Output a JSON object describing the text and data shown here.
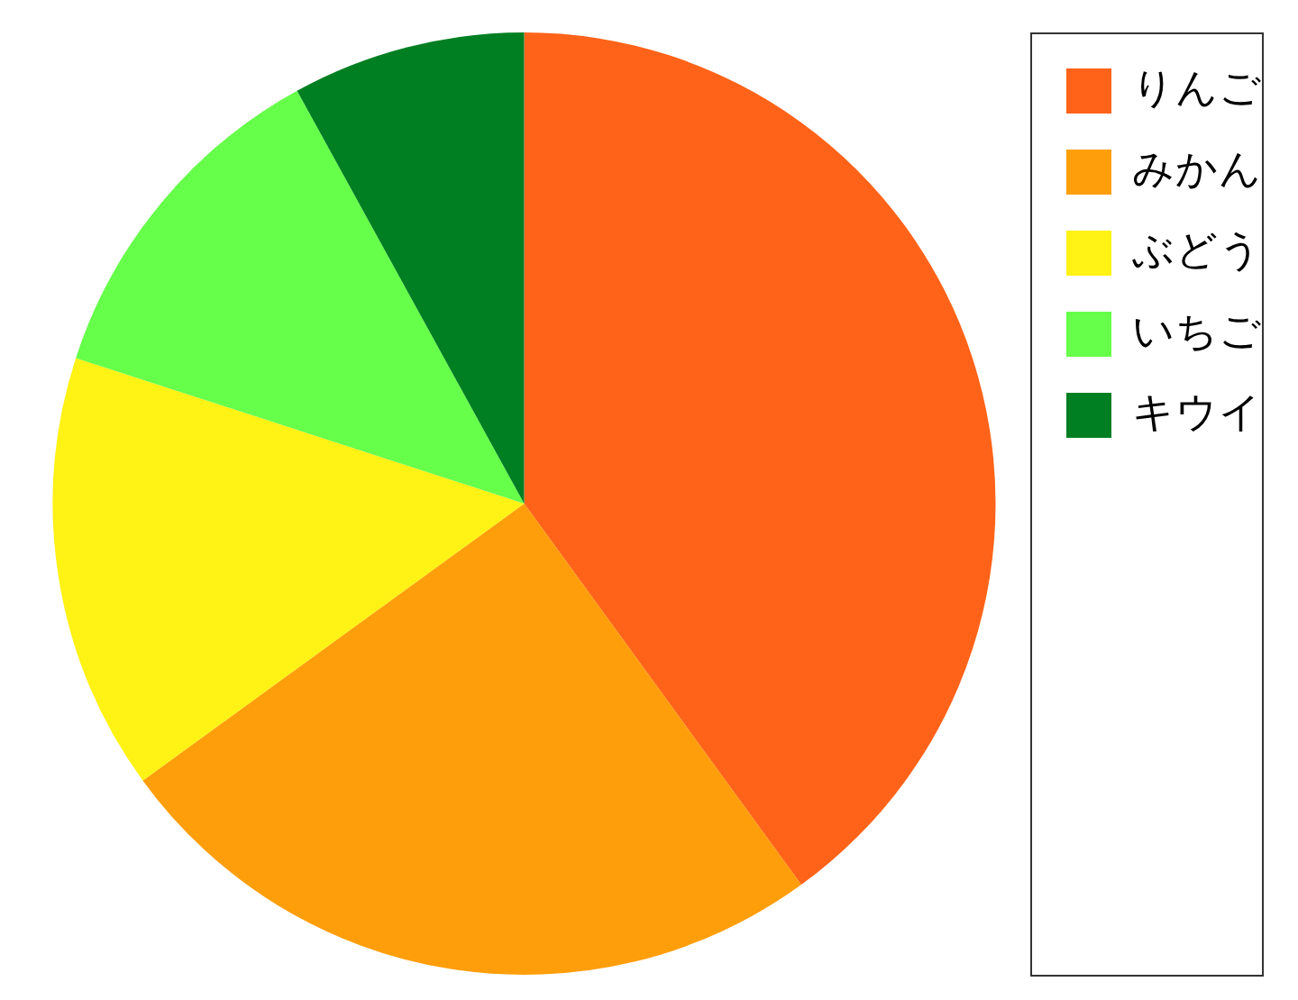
{
  "chart_data": {
    "type": "pie",
    "categories": [
      "りんご",
      "みかん",
      "ぶどう",
      "いちご",
      "キウイ"
    ],
    "values": [
      40,
      25,
      15,
      12,
      8
    ],
    "colors": [
      "#ff6319",
      "#ff9e0b",
      "#fff215",
      "#66ff4a",
      "#007f22"
    ],
    "legend": "top right"
  }
}
